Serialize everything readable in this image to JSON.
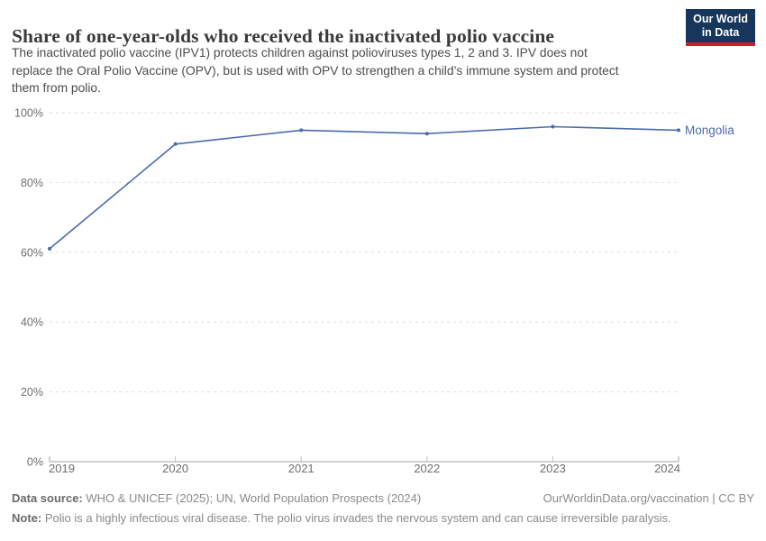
{
  "header": {
    "logo_line1": "Our World",
    "logo_line2": "in Data"
  },
  "chart_data": {
    "type": "line",
    "title": "Share of one-year-olds who received the inactivated polio vaccine",
    "subtitle_lines": [
      "The inactivated polio vaccine (IPV1) protects children against polioviruses types 1, 2 and 3. IPV does not",
      "replace the Oral Polio Vaccine (OPV), but is used with OPV to strengthen a child’s immune system and protect",
      "them from polio."
    ],
    "x": [
      2019,
      2020,
      2021,
      2022,
      2023,
      2024
    ],
    "series": [
      {
        "name": "Mongolia",
        "values": [
          61,
          91,
          95,
          94,
          96,
          95
        ],
        "color": "#4b6bac"
      }
    ],
    "xlabel": "",
    "ylabel": "",
    "ylim": [
      0,
      100
    ],
    "yticks": [
      0,
      20,
      40,
      60,
      80,
      100
    ],
    "ytick_suffix": "%",
    "grid": "horizontal-dashed",
    "legend_position": "line-end-label"
  },
  "footer": {
    "datasource_label": "Data source:",
    "datasource_text": " WHO & UNICEF (2025); UN, World Population Prospects (2024)",
    "link_text": "OurWorldinData.org/vaccination | CC BY",
    "note_label": "Note:",
    "note_text": " Polio is a highly infectious viral disease. The polio virus invades the nervous system and can cause irreversible paralysis."
  },
  "colors": {
    "logo_navy": "#16365c",
    "logo_red": "#c0222e",
    "line_blue": "#4b6bac",
    "grid": "#dedede",
    "axis": "#a3a3a3",
    "axis_tick": "#c2c2c2",
    "tick_label": "#6e6e6e"
  }
}
